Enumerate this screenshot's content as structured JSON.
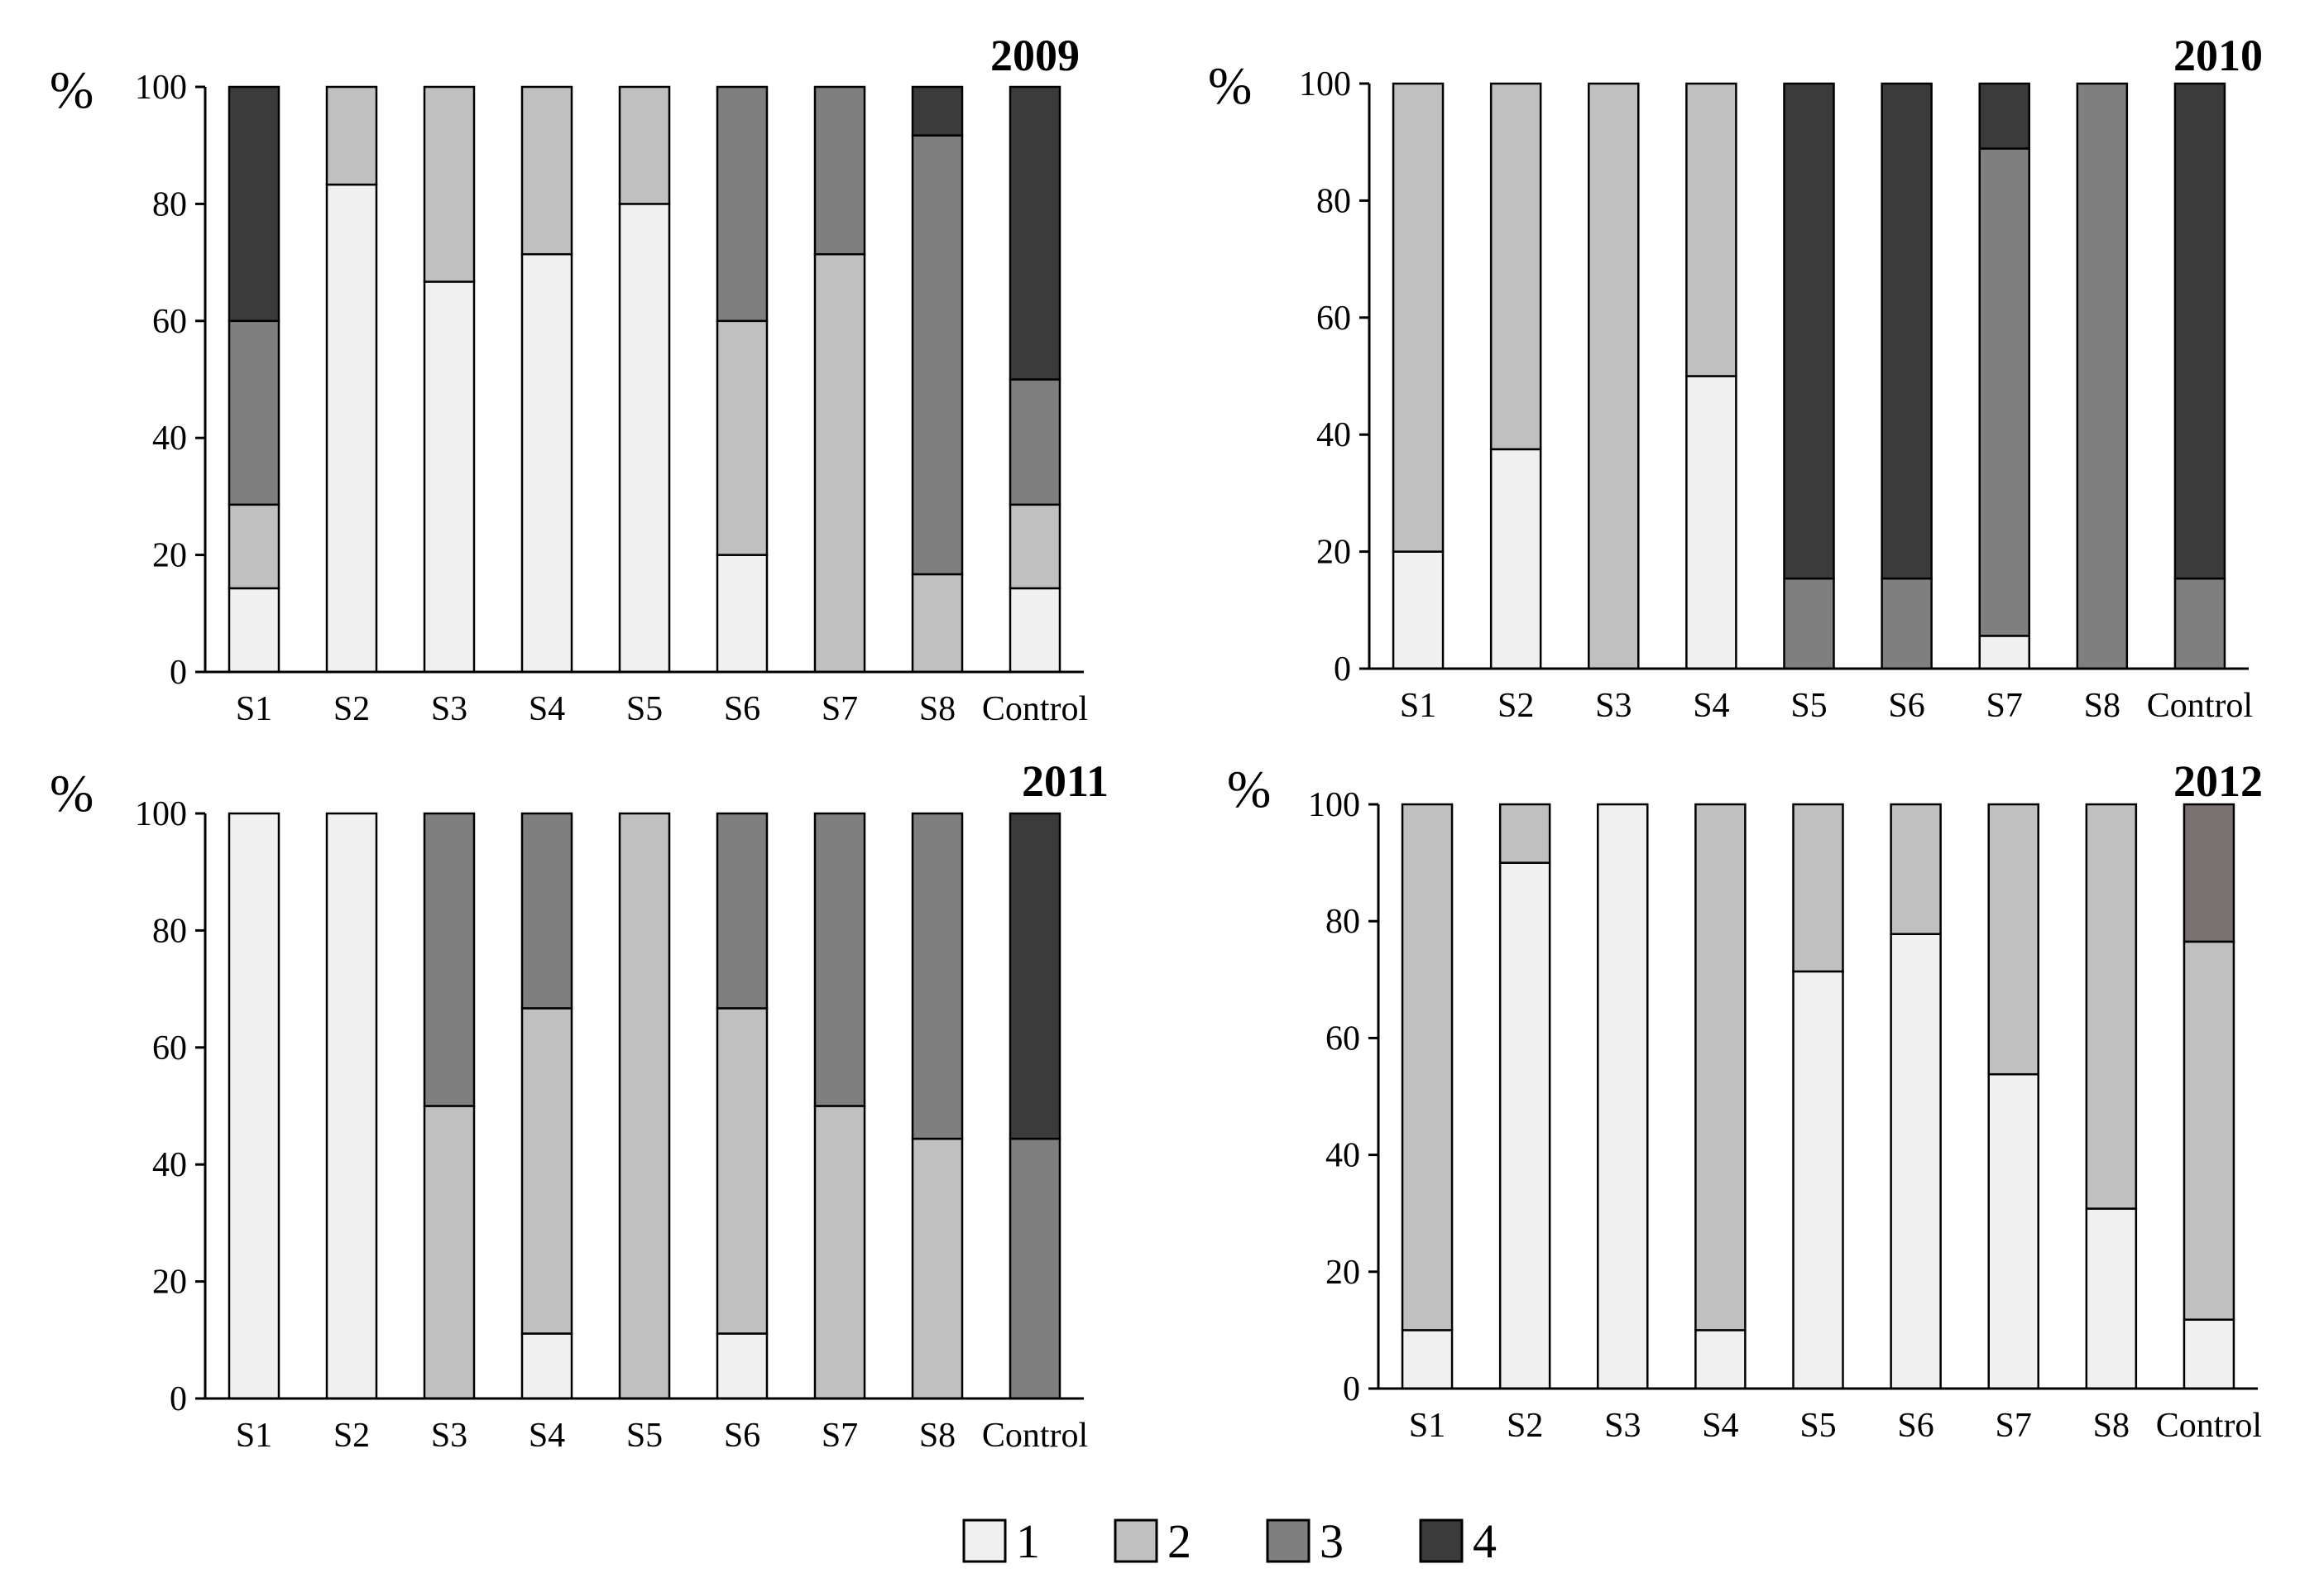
{
  "colors": {
    "1": "#f0f0f0",
    "2": "#c0c0c0",
    "3": "#7f7f7f",
    "4": "#3b3b3b",
    "4_alt": "#7a7272"
  },
  "legend": [
    {
      "key": "1",
      "label": "1"
    },
    {
      "key": "2",
      "label": "2"
    },
    {
      "key": "3",
      "label": "3"
    },
    {
      "key": "4",
      "label": "4"
    }
  ],
  "chart_data": [
    {
      "type": "bar",
      "stacked": true,
      "title": "2009",
      "ylabel": "%",
      "ylim": [
        0,
        100
      ],
      "yticks": [
        "0",
        "20",
        "40",
        "60",
        "80",
        "100"
      ],
      "categories": [
        "S1",
        "S2",
        "S3",
        "S4",
        "S5",
        "S6",
        "S7",
        "S8",
        "Control"
      ],
      "series": [
        {
          "name": "1",
          "values": [
            14.3,
            83.3,
            66.7,
            71.4,
            80,
            20,
            0,
            0,
            14.3
          ]
        },
        {
          "name": "2",
          "values": [
            14.3,
            16.7,
            33.3,
            28.6,
            20,
            40,
            71.4,
            16.7,
            14.3
          ]
        },
        {
          "name": "3",
          "values": [
            31.4,
            0,
            0,
            0,
            0,
            40,
            28.6,
            75,
            21.4
          ]
        },
        {
          "name": "4",
          "values": [
            40,
            0,
            0,
            0,
            0,
            0,
            0,
            8.3,
            50
          ]
        }
      ]
    },
    {
      "type": "bar",
      "stacked": true,
      "title": "2010",
      "ylabel": "%",
      "ylim": [
        0,
        100
      ],
      "yticks": [
        "0",
        "20",
        "40",
        "60",
        "80",
        "100"
      ],
      "categories": [
        "S1",
        "S2",
        "S3",
        "S4",
        "S5",
        "S6",
        "S7",
        "S8",
        "Control"
      ],
      "series": [
        {
          "name": "1",
          "values": [
            20,
            37.5,
            0,
            50,
            0,
            0,
            5.6,
            0,
            0
          ]
        },
        {
          "name": "2",
          "values": [
            80,
            62.5,
            100,
            50,
            0,
            0,
            0,
            0,
            0
          ]
        },
        {
          "name": "3",
          "values": [
            0,
            0,
            0,
            0,
            15.4,
            15.4,
            83.3,
            100,
            15.4
          ]
        },
        {
          "name": "4",
          "values": [
            0,
            0,
            0,
            0,
            84.6,
            84.6,
            11.1,
            0,
            84.6
          ]
        }
      ]
    },
    {
      "type": "bar",
      "stacked": true,
      "title": "2011",
      "ylabel": "%",
      "ylim": [
        0,
        100
      ],
      "yticks": [
        "0",
        "20",
        "40",
        "60",
        "80",
        "100"
      ],
      "categories": [
        "S1",
        "S2",
        "S3",
        "S4",
        "S5",
        "S6",
        "S7",
        "S8",
        "Control"
      ],
      "series": [
        {
          "name": "1",
          "values": [
            100,
            100,
            0,
            11.1,
            0,
            11.1,
            0,
            0,
            0
          ]
        },
        {
          "name": "2",
          "values": [
            0,
            0,
            50,
            55.6,
            100,
            55.6,
            50,
            44.4,
            0
          ]
        },
        {
          "name": "3",
          "values": [
            0,
            0,
            50,
            33.3,
            0,
            33.3,
            50,
            55.6,
            44.4
          ]
        },
        {
          "name": "4",
          "values": [
            0,
            0,
            0,
            0,
            0,
            0,
            0,
            0,
            55.6
          ]
        }
      ]
    },
    {
      "type": "bar",
      "stacked": true,
      "title": "2012",
      "ylabel": "%",
      "ylim": [
        0,
        100
      ],
      "yticks": [
        "0",
        "20",
        "40",
        "60",
        "80",
        "100"
      ],
      "categories": [
        "S1",
        "S2",
        "S3",
        "S4",
        "S5",
        "S6",
        "S7",
        "S8",
        "Control"
      ],
      "series": [
        {
          "name": "1",
          "values": [
            10,
            90,
            100,
            10,
            71.4,
            77.8,
            53.8,
            30.8,
            11.8
          ]
        },
        {
          "name": "2",
          "values": [
            90,
            10,
            0,
            90,
            28.6,
            22.2,
            46.2,
            69.2,
            64.7
          ]
        },
        {
          "name": "3",
          "values": [
            0,
            0,
            0,
            0,
            0,
            0,
            0,
            0,
            0
          ]
        },
        {
          "name": "4",
          "values": [
            0,
            0,
            0,
            0,
            0,
            0,
            0,
            0,
            23.5
          ]
        }
      ],
      "color_overrides": {
        "4": "4_alt"
      }
    }
  ]
}
